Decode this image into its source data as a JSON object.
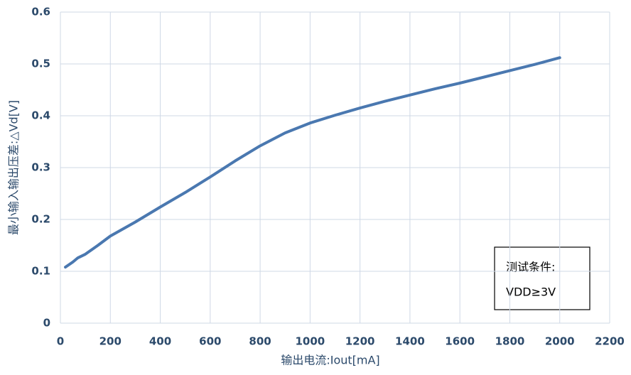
{
  "chart_data": {
    "type": "line",
    "x_label": "输出电流:Iout[mA]",
    "y_label": "最小输入输出压差:△Vd[V]",
    "annotation": [
      "测试条件:",
      "VDD≥3V"
    ],
    "x": [
      20,
      50,
      70,
      100,
      150,
      200,
      300,
      400,
      500,
      600,
      700,
      800,
      900,
      1000,
      1100,
      1200,
      1300,
      1400,
      1500,
      1600,
      1700,
      1800,
      1900,
      2000
    ],
    "series": [
      {
        "color": "#4a78b0",
        "values": [
          0.108,
          0.118,
          0.126,
          0.133,
          0.15,
          0.168,
          0.195,
          0.224,
          0.252,
          0.282,
          0.313,
          0.342,
          0.367,
          0.386,
          0.401,
          0.415,
          0.428,
          0.44,
          0.452,
          0.463,
          0.475,
          0.487,
          0.499,
          0.512
        ]
      }
    ],
    "xlim": [
      0,
      2200
    ],
    "ylim": [
      0,
      0.6
    ],
    "xticks": [
      0,
      200,
      400,
      600,
      800,
      1000,
      1200,
      1400,
      1600,
      1800,
      2000,
      2200
    ],
    "yticks": [
      0,
      0.1,
      0.2,
      0.3,
      0.4,
      0.5,
      0.6
    ],
    "grid": true
  }
}
